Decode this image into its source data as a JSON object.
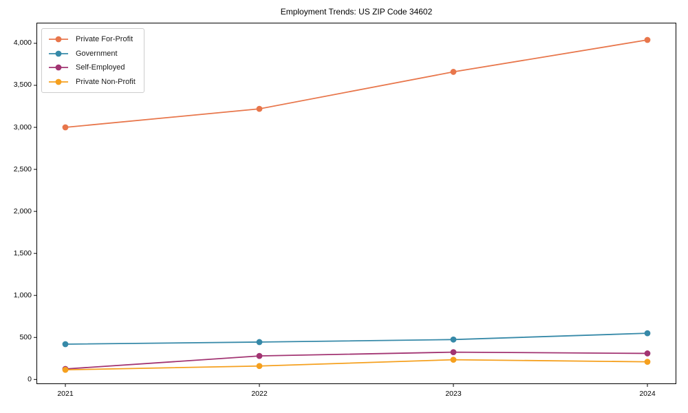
{
  "title": "Employment Trends: US ZIP Code 34602",
  "chart_data": {
    "type": "line",
    "title": "Employment Trends: US ZIP Code 34602",
    "xlabel": "",
    "ylabel": "",
    "x": [
      2021,
      2022,
      2023,
      2024
    ],
    "x_tick_labels": [
      "2021",
      "2022",
      "2023",
      "2024"
    ],
    "series": [
      {
        "name": "Private For-Profit",
        "color": "#E8764B",
        "values": [
          3000,
          3220,
          3660,
          4040
        ]
      },
      {
        "name": "Government",
        "color": "#3689A8",
        "values": [
          420,
          445,
          475,
          550
        ]
      },
      {
        "name": "Self-Employed",
        "color": "#A23472",
        "values": [
          125,
          280,
          325,
          310
        ]
      },
      {
        "name": "Private Non-Profit",
        "color": "#F5A01E",
        "values": [
          115,
          160,
          235,
          210
        ]
      }
    ],
    "y_ticks": [
      0,
      500,
      1000,
      1500,
      2000,
      2500,
      3000,
      3500,
      4000
    ],
    "y_tick_labels": [
      "0",
      "500",
      "1,000",
      "1,500",
      "2,000",
      "2,500",
      "3,000",
      "3,500",
      "4,000"
    ],
    "ylim": [
      -55,
      4245
    ],
    "grid": false,
    "legend_position": "upper left",
    "marker": "circle",
    "axis_color": "#000000"
  }
}
